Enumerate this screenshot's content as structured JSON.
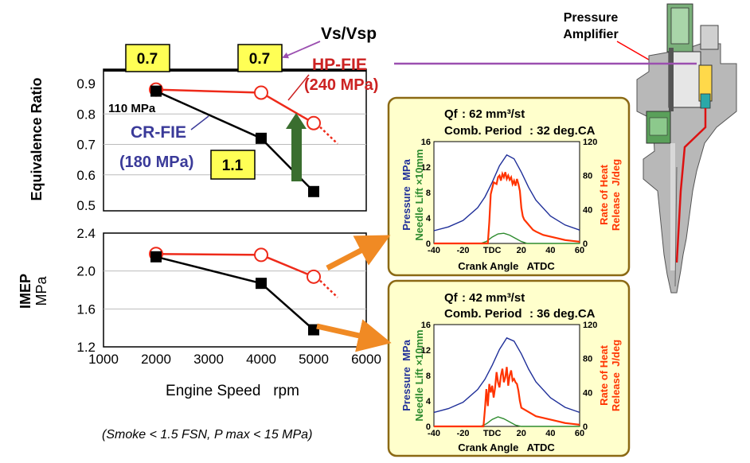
{
  "colors": {
    "red_series": "#ee2a1a",
    "black_series": "#000000",
    "hp_label": "#cc2222",
    "cr_label": "#3a3a99",
    "callout_fill": "#ffff55",
    "panel_fill": "#ffffcc",
    "panel_border": "#8b6914",
    "pressure_line": "#1f2f99",
    "needle_line": "#2e8b2e",
    "heat_line": "#ff3300",
    "arrow_orange": "#f08a24",
    "arrow_green": "#3a6e2f",
    "purple": "#9b4fb0"
  },
  "labels": {
    "vs_vsp": "Vs/Vsp",
    "hp_fie_line1": "HP-FIE",
    "hp_fie_line2": "(240 MPa)",
    "cr_fie_line1": "CR-FIE",
    "cr_fie_line2": "(180 MPa)",
    "cr_110": "110 MPa",
    "box_a": "0.7",
    "box_b": "0.7",
    "box_c": "1.1",
    "pressure_amplifier_1": "Pressure",
    "pressure_amplifier_2": "Amplifier",
    "footnote": "(Smoke < 1.5 FSN, P max < 15 MPa)"
  },
  "chart_data": [
    {
      "type": "line",
      "ylabel": "Equivalence Ratio",
      "xlim": [
        1000,
        6000
      ],
      "ylim": [
        0.5,
        0.9
      ],
      "yticks": [
        "0.5",
        "0.6",
        "0.7",
        "0.8",
        "0.9"
      ],
      "grid": true,
      "series": [
        {
          "name": "HP-FIE (240 MPa)",
          "marker": "open-circle",
          "x": [
            2000,
            4000,
            5000
          ],
          "values": [
            0.88,
            0.87,
            0.77
          ]
        },
        {
          "name": "CR-FIE (180 MPa)",
          "marker": "filled-square",
          "x": [
            2000,
            4000,
            5000
          ],
          "values": [
            0.875,
            0.72,
            0.545
          ]
        }
      ]
    },
    {
      "type": "line",
      "ylabel": "IMEP",
      "yunit": "MPa",
      "xlabel": "Engine Speed   rpm",
      "xlim": [
        1000,
        6000
      ],
      "ylim": [
        1.2,
        2.4
      ],
      "xticks": [
        "1000",
        "2000",
        "3000",
        "4000",
        "5000",
        "6000"
      ],
      "yticks": [
        "1.2",
        "1.6",
        "2.0",
        "2.4"
      ],
      "grid": true,
      "series": [
        {
          "name": "HP-FIE (240 MPa)",
          "marker": "open-circle",
          "x": [
            2000,
            4000,
            5000
          ],
          "values": [
            2.18,
            2.17,
            1.94
          ]
        },
        {
          "name": "CR-FIE (180 MPa)",
          "marker": "filled-square",
          "x": [
            2000,
            4000,
            5000
          ],
          "values": [
            2.15,
            1.87,
            1.38
          ]
        }
      ]
    },
    {
      "type": "line",
      "qf_label": "Qf",
      "qf_value": ": 62 mm³/st",
      "comb_label": "Comb. Period",
      "comb_value": ": 32 deg.CA",
      "xlabel": "Crank Angle   ATDC",
      "xlim": [
        -40,
        60
      ],
      "xticks": [
        "-40",
        "-20",
        "TDC",
        "20",
        "40",
        "60"
      ],
      "ylim_left": [
        0,
        16
      ],
      "yticks_left": [
        "0",
        "4",
        "8",
        "12",
        "16"
      ],
      "ylim_right": [
        0,
        120
      ],
      "yticks_right": [
        "0",
        "40",
        "80",
        "120"
      ],
      "ylabel_left_1": "Pressure  MPa",
      "ylabel_left_2": "Needle Lift ×10mm",
      "ylabel_right_1": "Rate of Heat",
      "ylabel_right_2": "Release  J/deg",
      "series": [
        {
          "role": "pressure",
          "axis": "left",
          "x": [
            -40,
            -30,
            -20,
            -10,
            -5,
            0,
            5,
            10,
            15,
            20,
            25,
            30,
            40,
            50,
            60
          ],
          "values": [
            2,
            2.6,
            3.6,
            5.6,
            7.3,
            9.6,
            12.2,
            13.9,
            13.3,
            11.2,
            8.8,
            6.8,
            4.3,
            2.9,
            2.1
          ]
        },
        {
          "role": "needle",
          "axis": "left",
          "x": [
            -40,
            -8,
            -4,
            0,
            4,
            8,
            12,
            16,
            20,
            24,
            60
          ],
          "values": [
            0,
            0,
            0.3,
            1.0,
            1.5,
            1.6,
            1.3,
            0.8,
            0.3,
            0,
            0
          ]
        },
        {
          "role": "heat",
          "axis": "right",
          "x": [
            -40,
            -3,
            -2,
            -1,
            1,
            3,
            4,
            5,
            6,
            7,
            8,
            9,
            10,
            11,
            12,
            13,
            14,
            15,
            16,
            17,
            18,
            19,
            20,
            21,
            22,
            24,
            26,
            28,
            30,
            35,
            40,
            45,
            50,
            55,
            60
          ],
          "values": [
            0,
            0,
            25,
            58,
            72,
            70,
            78,
            80,
            74,
            82,
            78,
            84,
            76,
            80,
            75,
            78,
            70,
            74,
            68,
            76,
            70,
            62,
            42,
            32,
            28,
            24,
            20,
            16,
            14,
            10,
            8,
            6,
            4,
            3,
            2
          ]
        }
      ]
    },
    {
      "type": "line",
      "qf_label": "Qf",
      "qf_value": ": 42 mm³/st",
      "comb_label": "Comb. Period",
      "comb_value": ": 36 deg.CA",
      "xlabel": "Crank Angle   ATDC",
      "xlim": [
        -40,
        60
      ],
      "xticks": [
        "-40",
        "-20",
        "TDC",
        "20",
        "40",
        "60"
      ],
      "ylim_left": [
        0,
        16
      ],
      "yticks_left": [
        "0",
        "4",
        "8",
        "12",
        "16"
      ],
      "ylim_right": [
        0,
        120
      ],
      "yticks_right": [
        "0",
        "40",
        "80",
        "120"
      ],
      "ylabel_left_1": "Pressure  MPa",
      "ylabel_left_2": "Needle Lift ×10mm",
      "ylabel_right_1": "Rate of Heat",
      "ylabel_right_2": "Release  J/deg",
      "series": [
        {
          "role": "pressure",
          "axis": "left",
          "x": [
            -40,
            -30,
            -20,
            -10,
            -5,
            0,
            5,
            10,
            15,
            20,
            25,
            30,
            40,
            50,
            60
          ],
          "values": [
            2.2,
            2.8,
            3.8,
            5.8,
            7.4,
            9.6,
            12.1,
            13.9,
            13.4,
            11.4,
            9.0,
            7.0,
            4.5,
            3.0,
            2.2
          ]
        },
        {
          "role": "needle",
          "axis": "left",
          "x": [
            -40,
            -8,
            -4,
            0,
            4,
            8,
            12,
            16,
            20,
            60
          ],
          "values": [
            0,
            0,
            0.4,
            1.1,
            1.5,
            1.2,
            0.7,
            0.2,
            0,
            0
          ]
        },
        {
          "role": "heat",
          "axis": "right",
          "x": [
            -40,
            -6,
            -5,
            -4,
            -3,
            -2,
            -1,
            0,
            1,
            2,
            3,
            4,
            5,
            6,
            7,
            8,
            9,
            10,
            11,
            12,
            13,
            14,
            15,
            16,
            17,
            18,
            19,
            20,
            22,
            24,
            26,
            28,
            30,
            35,
            40,
            45,
            50,
            55,
            60
          ],
          "values": [
            0,
            0,
            20,
            44,
            24,
            50,
            40,
            48,
            34,
            46,
            64,
            52,
            46,
            60,
            68,
            52,
            58,
            70,
            48,
            60,
            66,
            54,
            56,
            52,
            50,
            42,
            30,
            22,
            20,
            18,
            16,
            14,
            12,
            10,
            8,
            6,
            4,
            3,
            2
          ]
        }
      ]
    }
  ]
}
